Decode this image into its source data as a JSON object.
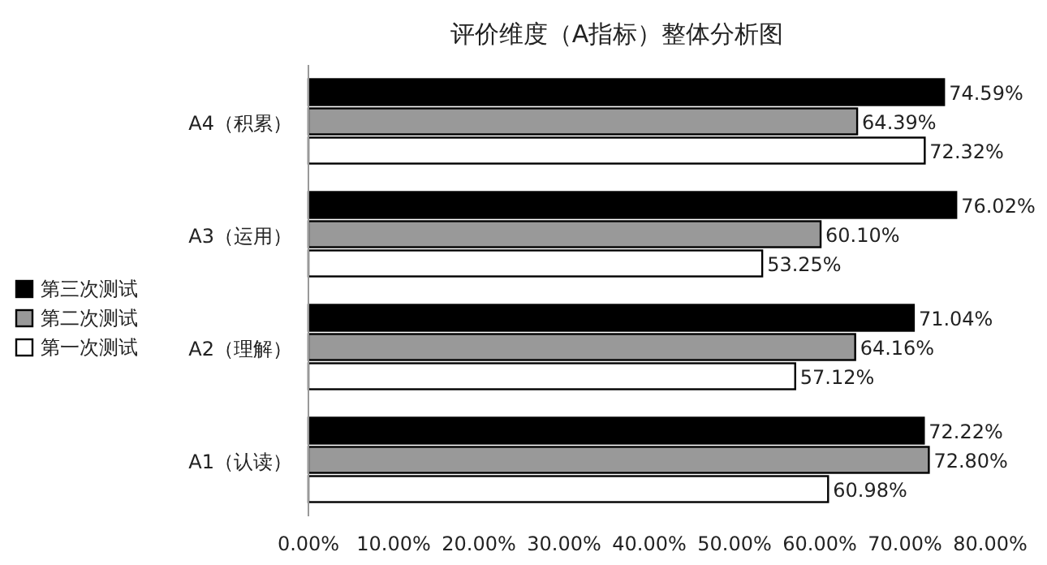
{
  "chart_data": {
    "type": "bar",
    "orientation": "horizontal",
    "title": "评价维度（A指标）整体分析图",
    "categories": [
      "A4（积累）",
      "A3（运用）",
      "A2（理解）",
      "A1（认读）"
    ],
    "series": [
      {
        "name": "第三次测试",
        "color": "#000000",
        "values": [
          74.59,
          76.02,
          71.04,
          72.22
        ],
        "value_labels": [
          "74.59%",
          "76.02%",
          "71.04%",
          "72.22%"
        ]
      },
      {
        "name": "第二次测试",
        "color": "#999999",
        "values": [
          64.39,
          60.1,
          64.16,
          72.8
        ],
        "value_labels": [
          "64.39%",
          "60.10%",
          "64.16%",
          "72.80%"
        ]
      },
      {
        "name": "第一次测试",
        "color": "#ffffff",
        "values": [
          72.32,
          53.25,
          57.12,
          60.98
        ],
        "value_labels": [
          "72.32%",
          "53.25%",
          "57.12%",
          "60.98%"
        ]
      }
    ],
    "xlim": [
      0,
      80
    ],
    "xticks": [
      {
        "value": 0,
        "label": "0.00%"
      },
      {
        "value": 10,
        "label": "10.00%"
      },
      {
        "value": 20,
        "label": "20.00%"
      },
      {
        "value": 30,
        "label": "30.00%"
      },
      {
        "value": 40,
        "label": "40.00%"
      },
      {
        "value": 50,
        "label": "50.00%"
      },
      {
        "value": 60,
        "label": "60.00%"
      },
      {
        "value": 70,
        "label": "70.00%"
      },
      {
        "value": 80,
        "label": "80.00%"
      }
    ],
    "legend": "left"
  }
}
